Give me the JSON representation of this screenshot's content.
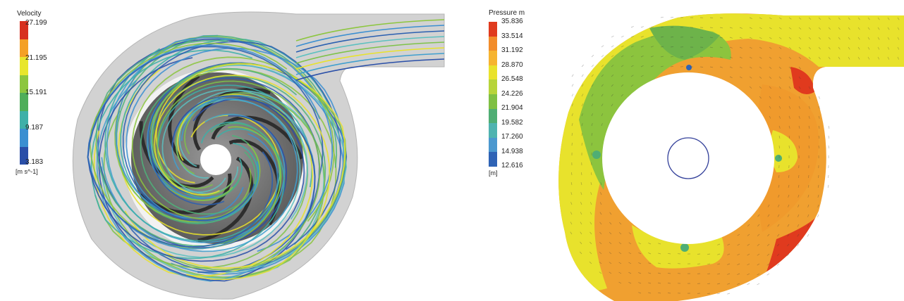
{
  "velocity_legend": {
    "title": "Velocity",
    "unit": "[m s^-1]",
    "ticks": [
      "27.199",
      "21.195",
      "15.191",
      "9.187",
      "3.183"
    ],
    "colors": [
      "#d7301f",
      "#f4a025",
      "#e8e62c",
      "#8cc63e",
      "#4fae5a",
      "#3fb0a8",
      "#3b8fd1",
      "#2a4fa8"
    ]
  },
  "pressure_legend": {
    "title": "Pressure m",
    "unit": "[m]",
    "ticks": [
      "35.836",
      "33.514",
      "31.192",
      "28.870",
      "26.548",
      "24.226",
      "21.904",
      "19.582",
      "17.260",
      "14.938",
      "12.616"
    ],
    "colors": [
      "#e03a1e",
      "#f28c2a",
      "#f6b430",
      "#e9e22c",
      "#b7d43a",
      "#7fc043",
      "#4fae74",
      "#4fb3b0",
      "#4b98cf",
      "#2f63b5"
    ]
  },
  "colors": {
    "casing": "#cfcfcf",
    "impeller": "#7f7f7f",
    "hub": "#ffffff"
  }
}
